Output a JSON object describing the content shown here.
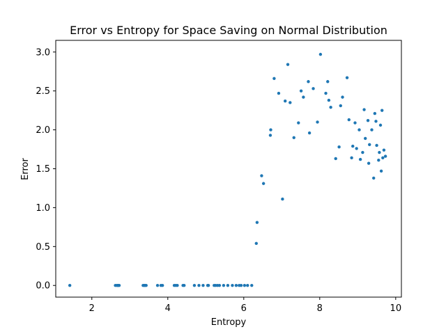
{
  "chart_data": {
    "type": "scatter",
    "title": "Error vs Entropy for Space Saving on Normal Distribution",
    "xlabel": "Entropy",
    "ylabel": "Error",
    "xlim": [
      1.05,
      10.15
    ],
    "ylim": [
      -0.15,
      3.15
    ],
    "xticks": [
      2,
      4,
      6,
      8,
      10
    ],
    "xtick_labels": [
      "2",
      "4",
      "6",
      "8",
      "10"
    ],
    "yticks": [
      0.0,
      0.5,
      1.0,
      1.5,
      2.0,
      2.5,
      3.0
    ],
    "ytick_labels": [
      "0.0",
      "0.5",
      "1.0",
      "1.5",
      "2.0",
      "2.5",
      "3.0"
    ],
    "grid": false,
    "color": "#1f77b4",
    "points": [
      {
        "x": 1.42,
        "y": 0.0
      },
      {
        "x": 2.62,
        "y": 0.0
      },
      {
        "x": 2.66,
        "y": 0.0
      },
      {
        "x": 2.68,
        "y": 0.0
      },
      {
        "x": 2.7,
        "y": 0.0
      },
      {
        "x": 2.72,
        "y": 0.0
      },
      {
        "x": 3.35,
        "y": 0.0
      },
      {
        "x": 3.38,
        "y": 0.0
      },
      {
        "x": 3.4,
        "y": 0.0
      },
      {
        "x": 3.43,
        "y": 0.0
      },
      {
        "x": 3.73,
        "y": 0.0
      },
      {
        "x": 3.82,
        "y": 0.0
      },
      {
        "x": 3.86,
        "y": 0.0
      },
      {
        "x": 4.17,
        "y": 0.0
      },
      {
        "x": 4.21,
        "y": 0.0
      },
      {
        "x": 4.25,
        "y": 0.0
      },
      {
        "x": 4.4,
        "y": 0.0
      },
      {
        "x": 4.43,
        "y": 0.0
      },
      {
        "x": 4.7,
        "y": 0.0
      },
      {
        "x": 4.82,
        "y": 0.0
      },
      {
        "x": 4.93,
        "y": 0.0
      },
      {
        "x": 5.05,
        "y": 0.0
      },
      {
        "x": 5.07,
        "y": 0.0
      },
      {
        "x": 5.22,
        "y": 0.0
      },
      {
        "x": 5.26,
        "y": 0.0
      },
      {
        "x": 5.31,
        "y": 0.0
      },
      {
        "x": 5.36,
        "y": 0.0
      },
      {
        "x": 5.47,
        "y": 0.0
      },
      {
        "x": 5.58,
        "y": 0.0
      },
      {
        "x": 5.7,
        "y": 0.0
      },
      {
        "x": 5.8,
        "y": 0.0
      },
      {
        "x": 5.88,
        "y": 0.0
      },
      {
        "x": 5.93,
        "y": 0.0
      },
      {
        "x": 6.02,
        "y": 0.0
      },
      {
        "x": 6.1,
        "y": 0.0
      },
      {
        "x": 6.21,
        "y": 0.0
      },
      {
        "x": 6.33,
        "y": 0.54
      },
      {
        "x": 6.35,
        "y": 0.81
      },
      {
        "x": 6.47,
        "y": 1.41
      },
      {
        "x": 6.52,
        "y": 1.31
      },
      {
        "x": 6.7,
        "y": 1.93
      },
      {
        "x": 6.71,
        "y": 2.0
      },
      {
        "x": 6.8,
        "y": 2.66
      },
      {
        "x": 6.92,
        "y": 2.47
      },
      {
        "x": 7.02,
        "y": 1.11
      },
      {
        "x": 7.09,
        "y": 2.37
      },
      {
        "x": 7.16,
        "y": 2.84
      },
      {
        "x": 7.22,
        "y": 2.35
      },
      {
        "x": 7.32,
        "y": 1.9
      },
      {
        "x": 7.44,
        "y": 2.09
      },
      {
        "x": 7.51,
        "y": 2.5
      },
      {
        "x": 7.57,
        "y": 2.42
      },
      {
        "x": 7.7,
        "y": 2.62
      },
      {
        "x": 7.73,
        "y": 1.96
      },
      {
        "x": 7.83,
        "y": 2.53
      },
      {
        "x": 7.94,
        "y": 2.1
      },
      {
        "x": 8.02,
        "y": 2.97
      },
      {
        "x": 8.16,
        "y": 2.47
      },
      {
        "x": 8.21,
        "y": 2.62
      },
      {
        "x": 8.24,
        "y": 2.38
      },
      {
        "x": 8.29,
        "y": 2.29
      },
      {
        "x": 8.42,
        "y": 1.63
      },
      {
        "x": 8.51,
        "y": 1.78
      },
      {
        "x": 8.55,
        "y": 2.31
      },
      {
        "x": 8.6,
        "y": 2.42
      },
      {
        "x": 8.72,
        "y": 2.67
      },
      {
        "x": 8.77,
        "y": 2.13
      },
      {
        "x": 8.84,
        "y": 1.64
      },
      {
        "x": 8.87,
        "y": 1.79
      },
      {
        "x": 8.93,
        "y": 2.09
      },
      {
        "x": 8.97,
        "y": 1.76
      },
      {
        "x": 9.04,
        "y": 2.0
      },
      {
        "x": 9.07,
        "y": 1.62
      },
      {
        "x": 9.13,
        "y": 1.71
      },
      {
        "x": 9.17,
        "y": 2.26
      },
      {
        "x": 9.2,
        "y": 1.89
      },
      {
        "x": 9.27,
        "y": 2.12
      },
      {
        "x": 9.29,
        "y": 1.57
      },
      {
        "x": 9.31,
        "y": 1.81
      },
      {
        "x": 9.37,
        "y": 2.0
      },
      {
        "x": 9.42,
        "y": 1.38
      },
      {
        "x": 9.45,
        "y": 2.21
      },
      {
        "x": 9.48,
        "y": 2.11
      },
      {
        "x": 9.5,
        "y": 1.8
      },
      {
        "x": 9.55,
        "y": 1.61
      },
      {
        "x": 9.57,
        "y": 1.71
      },
      {
        "x": 9.6,
        "y": 2.06
      },
      {
        "x": 9.62,
        "y": 1.47
      },
      {
        "x": 9.64,
        "y": 2.25
      },
      {
        "x": 9.66,
        "y": 1.64
      },
      {
        "x": 9.69,
        "y": 1.74
      },
      {
        "x": 9.73,
        "y": 1.66
      }
    ]
  }
}
